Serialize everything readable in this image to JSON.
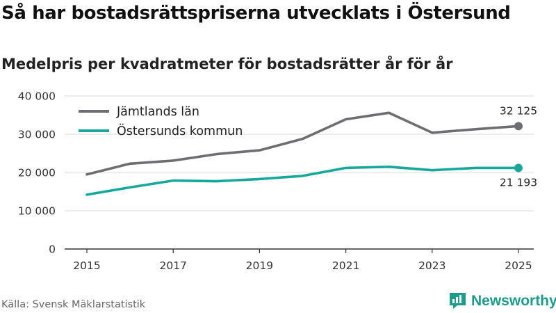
{
  "header": {
    "title": "Så har bostadsrättspriserna utvecklats i Östersund",
    "subtitle": "Medelpris per kvadratmeter för bostadsrätter år för år"
  },
  "footer": {
    "source": "Källa: Svensk Mäklarstatistik",
    "brand": "Newsworthy",
    "brand_icon": "newsworthy-logo-icon"
  },
  "chart_data": {
    "type": "line",
    "x": [
      2015,
      2016,
      2017,
      2018,
      2019,
      2020,
      2021,
      2022,
      2023,
      2024,
      2025
    ],
    "xticks": [
      2015,
      2017,
      2019,
      2021,
      2023,
      2025
    ],
    "xtick_labels": [
      "2015",
      "2017",
      "2019",
      "2021",
      "2023",
      "2025"
    ],
    "xlim": [
      2015,
      2025
    ],
    "yticks": [
      0,
      10000,
      20000,
      30000,
      40000
    ],
    "ytick_labels": [
      "0",
      "10 000",
      "20 000",
      "30 000",
      "40 000"
    ],
    "ylim": [
      0,
      40000
    ],
    "grid": "horizontal",
    "legend_position": "top-left",
    "series": [
      {
        "name": "Jämtlands län",
        "color": "#6d6d72",
        "values": [
          19500,
          22300,
          23100,
          24800,
          25800,
          28800,
          33900,
          35600,
          30400,
          31300,
          32125
        ],
        "end_label": "32 125"
      },
      {
        "name": "Östersunds kommun",
        "color": "#16a89b",
        "values": [
          14200,
          16100,
          17900,
          17700,
          18300,
          19100,
          21200,
          21500,
          20600,
          21200,
          21193
        ],
        "end_label": "21 193"
      }
    ]
  }
}
